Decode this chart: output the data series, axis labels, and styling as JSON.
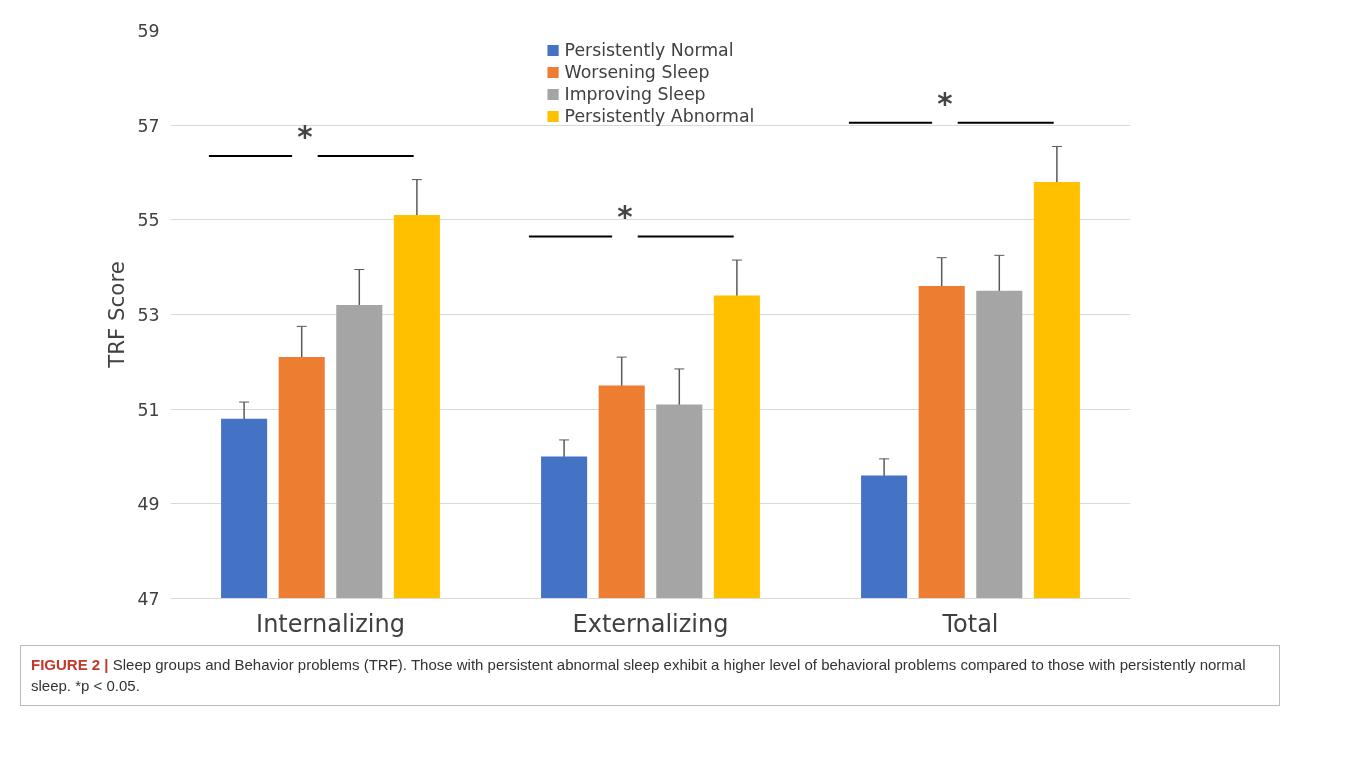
{
  "chart_data": {
    "type": "bar",
    "ylabel": "TRF Score",
    "categories": [
      "Internalizing",
      "Externalizing",
      "Total"
    ],
    "series": [
      {
        "name": "Persistently Normal",
        "color": "#4472c4",
        "values": [
          50.8,
          50.0,
          49.6
        ],
        "errors": [
          0.35,
          0.35,
          0.35
        ]
      },
      {
        "name": "Worsening Sleep",
        "color": "#ed7d31",
        "values": [
          52.1,
          51.5,
          53.6
        ],
        "errors": [
          0.65,
          0.6,
          0.6
        ]
      },
      {
        "name": "Improving Sleep",
        "color": "#a5a5a5",
        "values": [
          53.2,
          51.1,
          53.5
        ],
        "errors": [
          0.75,
          0.75,
          0.75
        ]
      },
      {
        "name": "Persistently Abnormal",
        "color": "#ffc000",
        "values": [
          55.1,
          53.4,
          55.8
        ],
        "errors": [
          0.75,
          0.75,
          0.75
        ]
      }
    ],
    "ylim": [
      47,
      59
    ],
    "yticks": [
      47,
      49,
      51,
      53,
      55,
      57,
      59
    ],
    "grid": "y",
    "legend": "top",
    "annotations": [
      "*",
      "*",
      "*",
      "FIGURE 2 | Sleep groups and Behavior problems (TRF). Those with persistent abnormal sleep exhibit a higher level of behavioral problems compared to those with persistently normal sleep. *p < 0.05."
    ]
  }
}
